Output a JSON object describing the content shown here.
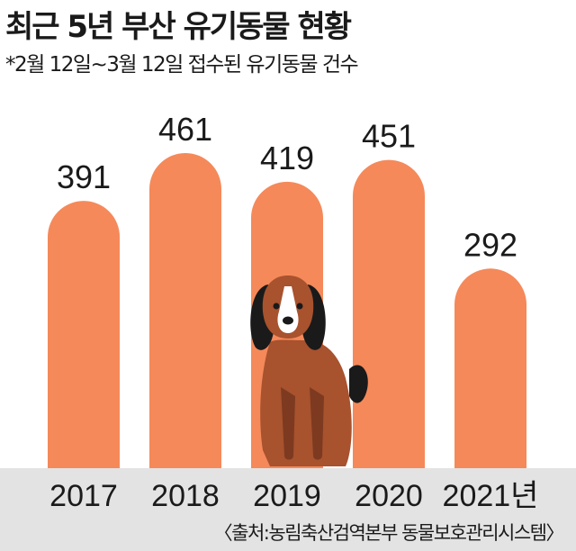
{
  "title": "최근 5년 부산 유기동물 현황",
  "subtitle": "*2월 12일~3월 12일 접수된 유기동물 건수",
  "source": "〈출처:농림축산검역본부 동물보호관리시스템〉",
  "colors": {
    "bar": "#f5895a",
    "ground": "#e3e3e3",
    "dog_body": "#a8522e",
    "dog_dark": "#1a1a1a"
  },
  "illustration": "dog-icon",
  "chart_data": {
    "type": "bar",
    "categories": [
      "2017",
      "2018",
      "2019",
      "2020",
      "2021년"
    ],
    "values": [
      391,
      461,
      419,
      451,
      292
    ],
    "data_labels": [
      "391",
      "461",
      "419",
      "451",
      "292"
    ],
    "title": "최근 5년 부산 유기동물 현황",
    "subtitle": "*2월 12일~3월 12일 접수된 유기동물 건수",
    "xlabel": "",
    "ylabel": "",
    "grid": false,
    "legend": "none"
  }
}
